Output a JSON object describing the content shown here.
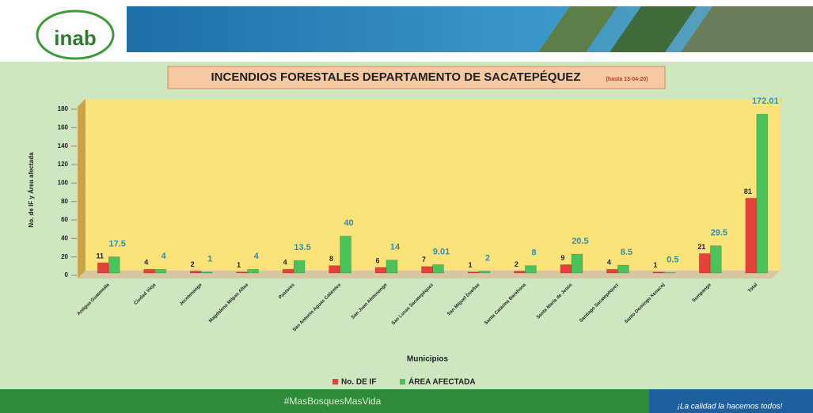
{
  "header": {
    "logo": "inab"
  },
  "chart_data": {
    "type": "bar",
    "title": "INCENDIOS FORESTALES DEPARTAMENTO DE SACATEPÉQUEZ",
    "subtitle": "(hasta 13-04-20)",
    "y_label": "No. de IF y Área afectada",
    "x_label": "Municipios",
    "categories": [
      "Antigua Guatemala",
      "Ciudad Vieja",
      "Jocotenango",
      "Magdalena Milpas Altas",
      "Pastores",
      "San Antonio Aguas Calientes",
      "San Juan Alotenango",
      "San Lucas Sacatepéquez",
      "San Miguel Dueñas",
      "Santa Catarina Barahona",
      "Santa María de Jesús",
      "Santiago Sacatepéquez",
      "Santo Domingo Xenacoj",
      "Sumpango",
      "Total"
    ],
    "series": [
      {
        "name": "No. DE IF",
        "color": "#e5403a",
        "label_color": "#222222",
        "values": [
          11,
          4,
          2,
          1,
          4,
          8,
          6,
          7,
          1,
          2,
          9,
          4,
          1,
          21,
          81
        ]
      },
      {
        "name": "ÁREA AFECTADA",
        "color": "#4cc35a",
        "label_color": "#2a8fb5",
        "values": [
          17.5,
          4,
          1,
          4,
          13.5,
          40,
          14,
          9.01,
          2,
          8,
          20.5,
          8.5,
          0.5,
          29.5,
          172.01
        ]
      }
    ],
    "ylim": [
      0,
      180
    ],
    "yticks": [
      0,
      20,
      40,
      60,
      80,
      100,
      120,
      140,
      160,
      180
    ],
    "grid": false
  },
  "footer": {
    "hashtag": "#MasBosquesMasVida",
    "slogan": "¡La calidad la hacemos todos!"
  }
}
